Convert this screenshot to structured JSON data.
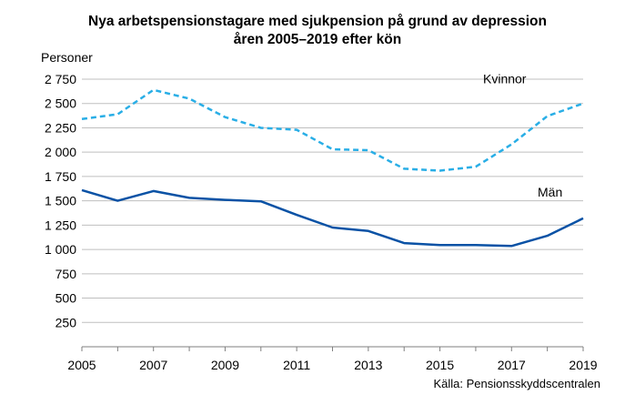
{
  "chart_data": {
    "type": "line",
    "title_lines": [
      "Nya arbetspensionstagare med sjukpension på grund av depression",
      "åren 2005–2019 efter kön"
    ],
    "ylabel": "Personer",
    "xlabel": "",
    "source": "Källa: Pensionsskyddscentralen",
    "x": [
      2005,
      2006,
      2007,
      2008,
      2009,
      2010,
      2011,
      2012,
      2013,
      2014,
      2015,
      2016,
      2017,
      2018,
      2019
    ],
    "xticks": [
      "2005",
      "2007",
      "2009",
      "2011",
      "2013",
      "2015",
      "2017",
      "2019"
    ],
    "xlim": [
      2005,
      2019
    ],
    "ylim": [
      0,
      2750
    ],
    "yticks": [
      {
        "value": 250,
        "label": "250"
      },
      {
        "value": 500,
        "label": "500"
      },
      {
        "value": 750,
        "label": "750"
      },
      {
        "value": 1000,
        "label": "1 000"
      },
      {
        "value": 1250,
        "label": "1 250"
      },
      {
        "value": 1500,
        "label": "1 500"
      },
      {
        "value": 1750,
        "label": "1 750"
      },
      {
        "value": 2000,
        "label": "2 000"
      },
      {
        "value": 2250,
        "label": "2 250"
      },
      {
        "value": 2500,
        "label": "2 500"
      },
      {
        "value": 2750,
        "label": "2 750"
      }
    ],
    "grid": true,
    "series": [
      {
        "name": "Kvinnor",
        "color": "#29aee6",
        "dashed": true,
        "values": [
          2340,
          2390,
          2640,
          2550,
          2360,
          2250,
          2230,
          2030,
          2020,
          1830,
          1810,
          1850,
          2080,
          2370,
          2500
        ]
      },
      {
        "name": "Män",
        "color": "#0a52a5",
        "dashed": false,
        "values": [
          1610,
          1500,
          1600,
          1530,
          1510,
          1495,
          1355,
          1225,
          1190,
          1065,
          1045,
          1045,
          1035,
          1140,
          1320
        ]
      }
    ]
  }
}
